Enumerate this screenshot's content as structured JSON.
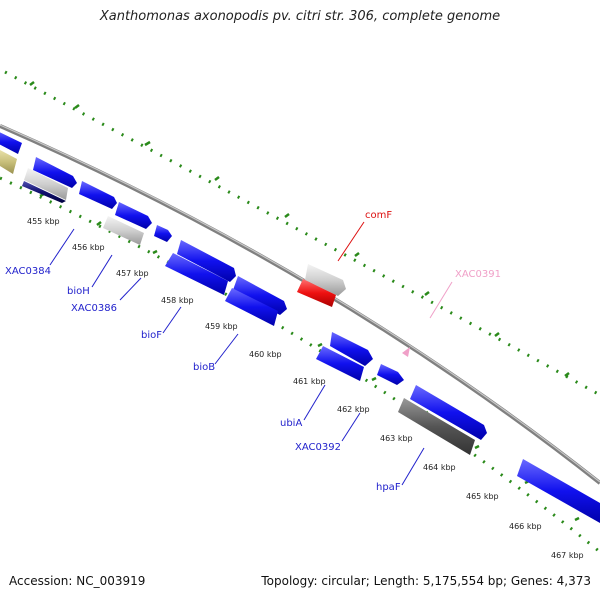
{
  "title": "Xanthomonas axonopodis pv. citri str. 306, complete genome",
  "footer": {
    "accession": "Accession: NC_003919",
    "topology": "Topology: circular; Length: 5,175,554 bp; Genes: 4,373"
  },
  "colors": {
    "cds_blue": "#1111ee",
    "rna_gray": "#c8c8c8",
    "dark_gray": "#555555",
    "red": "#ee1111",
    "olive": "#c8bf7a",
    "navy": "#101070",
    "pink": "#f0a0c8",
    "ticks_green": "#2a8a1a",
    "backbone": "#909090"
  },
  "ticks": [
    "455 kbp",
    "456 kbp",
    "457 kbp",
    "458 kbp",
    "459 kbp",
    "460 kbp",
    "461 kbp",
    "462 kbp",
    "463 kbp",
    "464 kbp",
    "465 kbp",
    "466 kbp",
    "467 kbp"
  ],
  "labels": [
    "XAC0384",
    "bioH",
    "XAC0386",
    "bioF",
    "bioB",
    "ubiA",
    "XAC0392",
    "hpaF",
    "comF",
    "XAC0391"
  ]
}
